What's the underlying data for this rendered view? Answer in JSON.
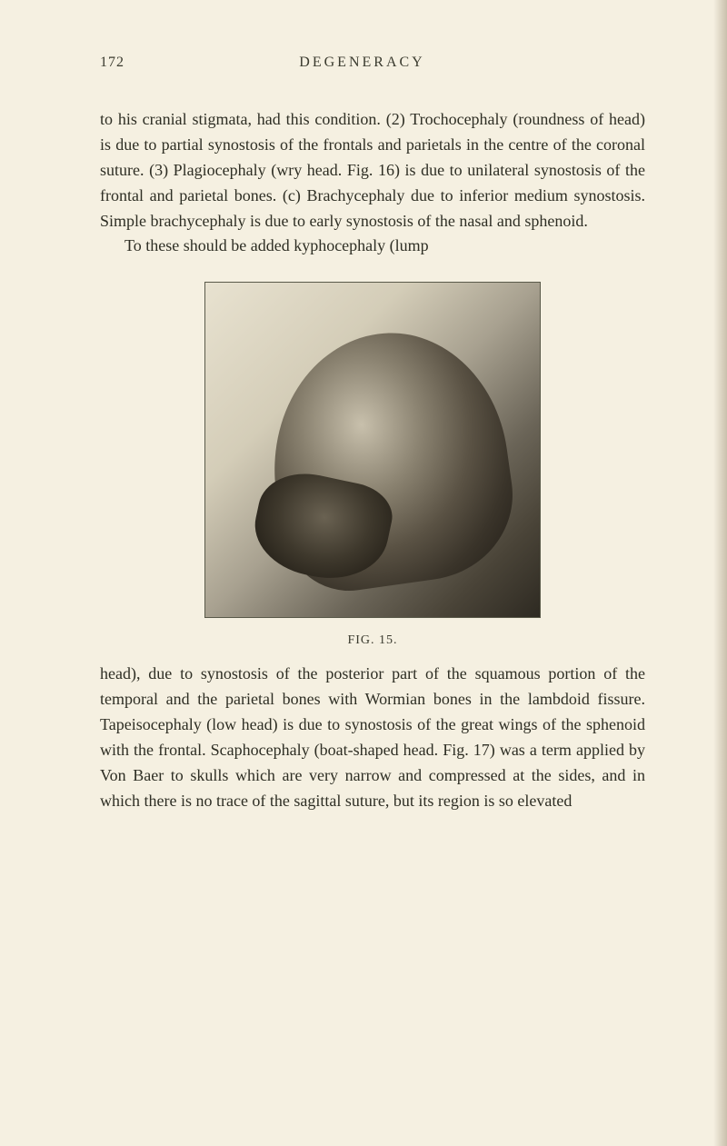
{
  "page": {
    "number": "172",
    "title": "DEGENERACY"
  },
  "paragraphs": {
    "p1": "to his cranial stigmata, had this condition. (2) Trochocephaly (roundness of head) is due to partial synostosis of the frontals and parietals in the centre of the coronal suture. (3) Plagiocephaly (wry head. Fig. 16) is due to unilateral synostosis of the frontal and parietal bones. (c) Brachycephaly due to inferior medium synostosis. Simple brachycephaly is due to early synostosis of the nasal and sphenoid.",
    "p2": "To these should be added kyphocephaly (lump",
    "p3": "head), due to synostosis of the posterior part of the squamous portion of the temporal and the parietal bones with Wormian bones in the lambdoid fissure. Tapeisocephaly (low head) is due to synostosis of the great wings of the sphenoid with the frontal. Scaphocephaly (boat-shaped head. Fig. 17) was a term applied by Von Baer to skulls which are very narrow and compressed at the sides, and in which there is no trace of the sagittal suture, but its region is so elevated"
  },
  "figure": {
    "caption": "FIG. 15.",
    "description": "skull-photograph"
  },
  "styling": {
    "background_color": "#f5f0e1",
    "text_color": "#2e2e24",
    "body_font_size": 18,
    "caption_font_size": 14,
    "header_font_size": 16,
    "figure_border_color": "#5a5a4a",
    "figure_width": 370,
    "figure_height": 370
  }
}
